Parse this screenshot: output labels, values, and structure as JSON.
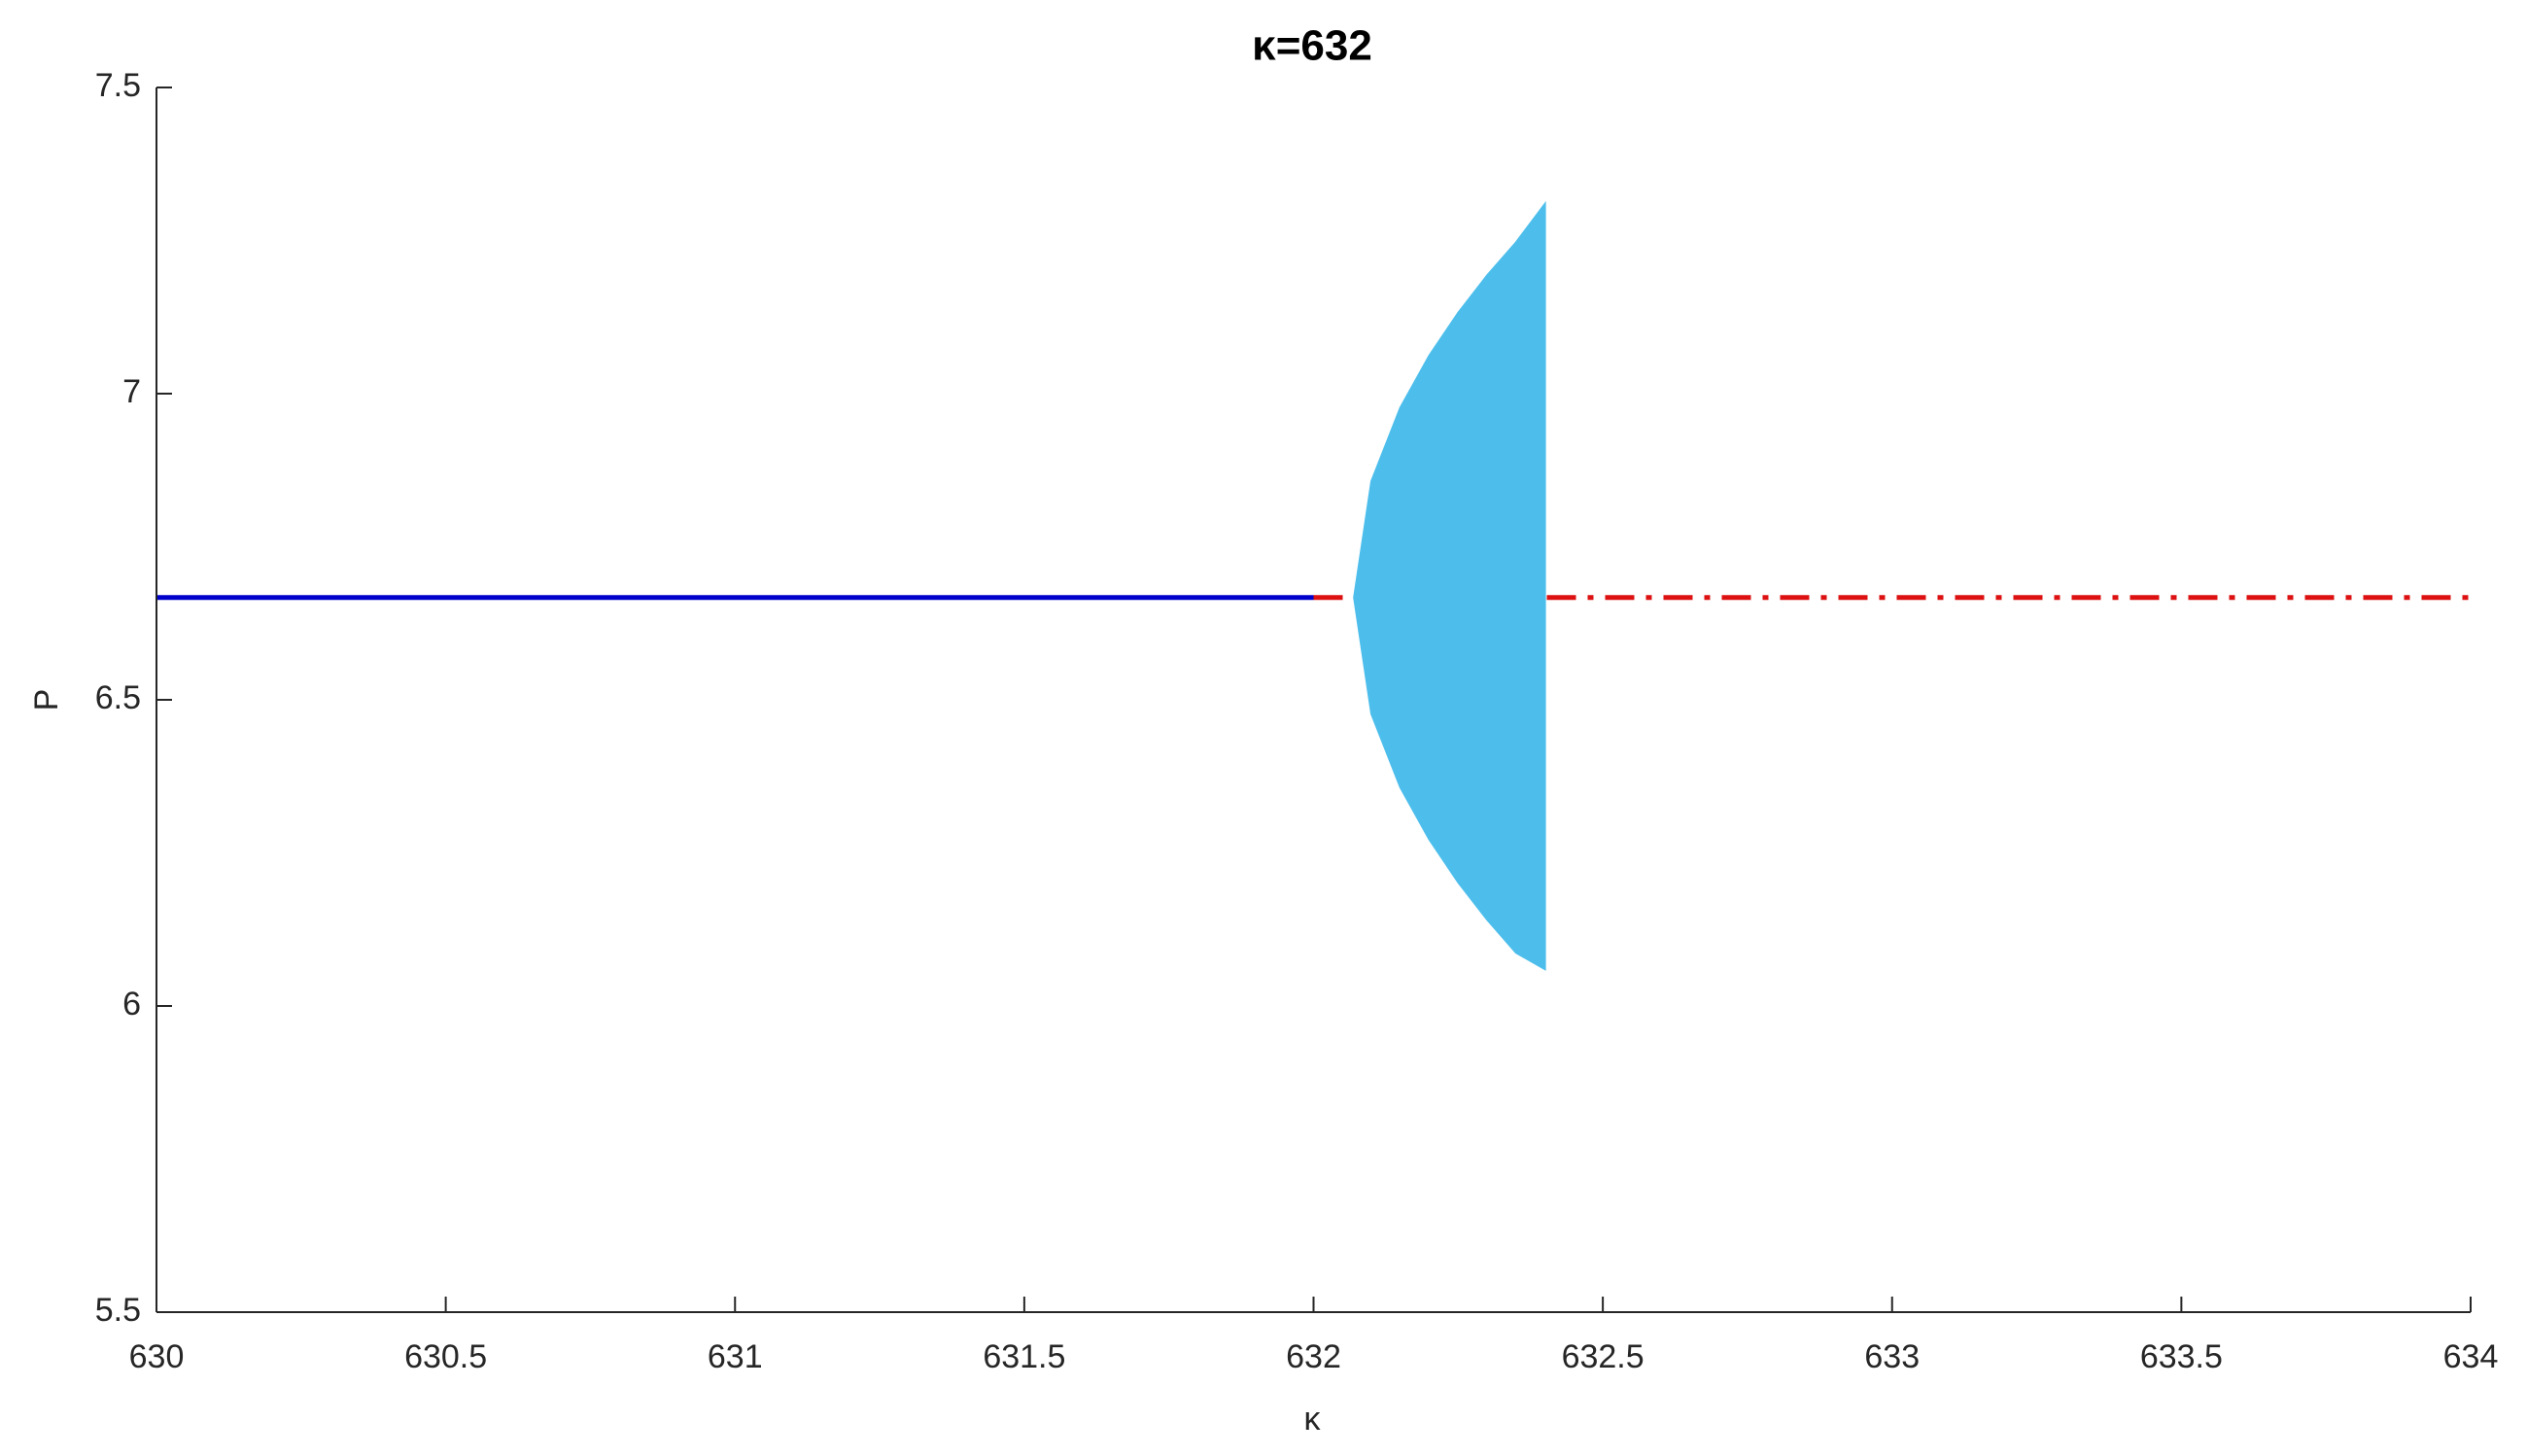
{
  "chart_data": {
    "type": "line",
    "title": "κ=632",
    "xlabel": "κ",
    "ylabel": "P",
    "xlim": [
      630,
      634
    ],
    "xticks": [
      630,
      630.5,
      631,
      631.5,
      632,
      632.5,
      633,
      633.5,
      634
    ],
    "ylim": [
      5.5,
      7.5
    ],
    "yticks": [
      5.5,
      6,
      6.5,
      7,
      7.5
    ],
    "grid": false,
    "series": [
      {
        "color": "#0000cc",
        "style": "solid",
        "x": [
          630,
          632
        ],
        "values": [
          6.667,
          6.667
        ]
      },
      {
        "color": "#dd1111",
        "style": "dashdot",
        "x": [
          632,
          634
        ],
        "values": [
          6.667,
          6.667
        ]
      },
      {
        "type": "band",
        "color": "#4dbeec",
        "x": [
          632.07,
          632.1,
          632.15,
          632.2,
          632.25,
          632.3,
          632.35,
          632.4
        ],
        "high": [
          6.667,
          6.857,
          6.977,
          7.062,
          7.132,
          7.193,
          7.247,
          7.31
        ],
        "low": [
          6.667,
          6.477,
          6.357,
          6.272,
          6.202,
          6.141,
          6.087,
          6.06
        ]
      }
    ]
  }
}
